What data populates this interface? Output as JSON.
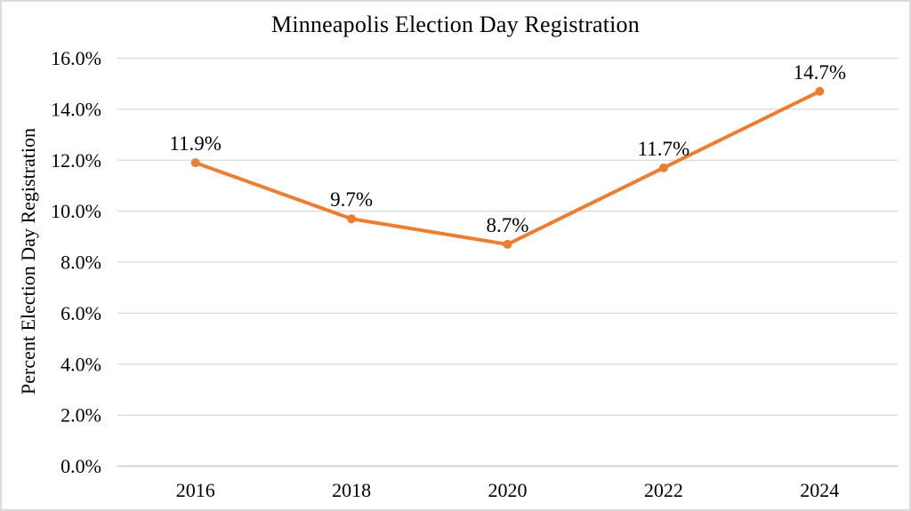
{
  "chart_data": {
    "type": "line",
    "title": "Minneapolis Election Day Registration",
    "xlabel": "",
    "ylabel": "Percent Election Day Registration",
    "categories": [
      "2016",
      "2018",
      "2020",
      "2022",
      "2024"
    ],
    "series": [
      {
        "name": "Percent Election Day Registration",
        "values": [
          11.9,
          9.7,
          8.7,
          11.7,
          14.7
        ],
        "point_labels": [
          "11.9%",
          "9.7%",
          "8.7%",
          "11.7%",
          "14.7%"
        ],
        "color": "#ED7D31"
      }
    ],
    "ylim": [
      0,
      16
    ],
    "y_tick_step": 2,
    "y_ticks": [
      "0.0%",
      "2.0%",
      "4.0%",
      "6.0%",
      "8.0%",
      "10.0%",
      "12.0%",
      "14.0%",
      "16.0%"
    ],
    "grid": "horizontal",
    "legend": "none",
    "colors": {
      "line": "#ED7D31",
      "marker": "#ED7D31",
      "gridline": "#D9D9D9",
      "axis_line": "#C9C9C9",
      "text": "#000000",
      "background": "#FFFFFF",
      "border": "#DCDCDC"
    }
  }
}
